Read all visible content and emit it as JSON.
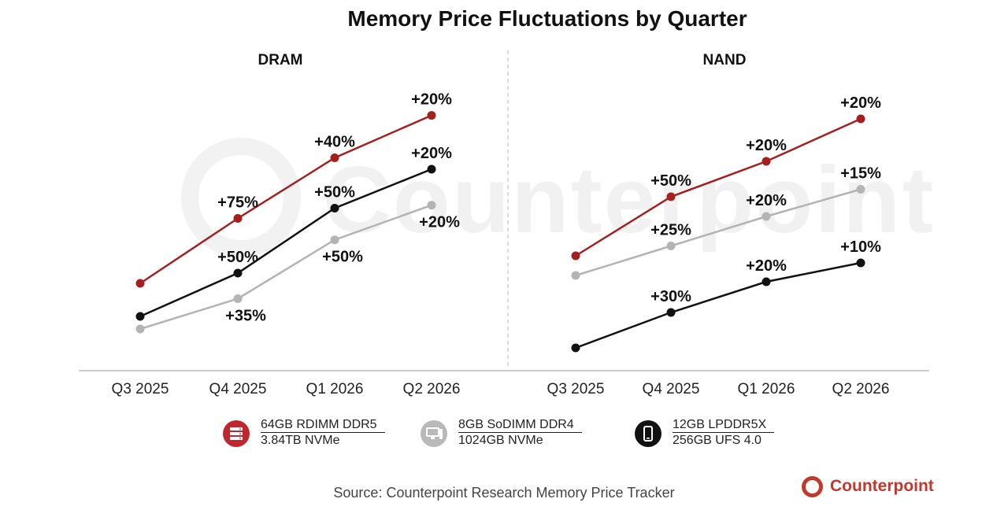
{
  "chart_data": {
    "type": "line",
    "title": "Memory Price Fluctuations by Quarter",
    "categories": [
      "Q3 2025",
      "Q4 2025",
      "Q1 2026",
      "Q2 2026"
    ],
    "panels": [
      {
        "name": "DRAM",
        "series": [
          {
            "key": "rdimm",
            "color": "#a51f1f",
            "values": [
              1.0,
              1.75,
              2.45,
              2.94
            ],
            "labels": [
              "",
              "+75%",
              "+40%",
              "+20%"
            ]
          },
          {
            "key": "sodimm",
            "color": "#b4b4b4",
            "values": [
              1.0,
              1.35,
              2.03,
              2.43
            ],
            "labels": [
              "",
              "+35%",
              "+50%",
              "+20%"
            ]
          },
          {
            "key": "lpddr",
            "color": "#111111",
            "values": [
              1.0,
              1.5,
              2.25,
              2.7
            ],
            "labels": [
              "",
              "+50%",
              "+50%",
              "+20%"
            ]
          }
        ]
      },
      {
        "name": "NAND",
        "series": [
          {
            "key": "rdimm",
            "color": "#a51f1f",
            "values": [
              1.0,
              1.5,
              1.8,
              2.16
            ],
            "labels": [
              "",
              "+50%",
              "+20%",
              "+20%"
            ]
          },
          {
            "key": "sodimm",
            "color": "#b4b4b4",
            "values": [
              1.0,
              1.25,
              1.5,
              1.73
            ],
            "labels": [
              "",
              "+25%",
              "+20%",
              "+15%"
            ]
          },
          {
            "key": "lpddr",
            "color": "#111111",
            "values": [
              1.0,
              1.3,
              1.56,
              1.72
            ],
            "labels": [
              "",
              "+30%",
              "+20%",
              "+10%"
            ]
          }
        ]
      }
    ],
    "legend": [
      {
        "key": "rdimm",
        "line1": "64GB RDIMM DDR5",
        "line2": "3.84TB NVMe",
        "color": "#c0262d",
        "icon": "server-icon"
      },
      {
        "key": "sodimm",
        "line1": "8GB SoDIMM DDR4",
        "line2": "1024GB NVMe",
        "color": "#b9b9b9",
        "icon": "desktop-icon"
      },
      {
        "key": "lpddr",
        "line1": "12GB LPDDR5X",
        "line2": "256GB UFS 4.0",
        "color": "#111111",
        "icon": "smartphone-icon"
      }
    ],
    "legend_placement": "bottom",
    "grid": false
  },
  "source": "Source: Counterpoint Research Memory Price Tracker",
  "watermark": "Counterpoint",
  "brand": "Counterpoint"
}
